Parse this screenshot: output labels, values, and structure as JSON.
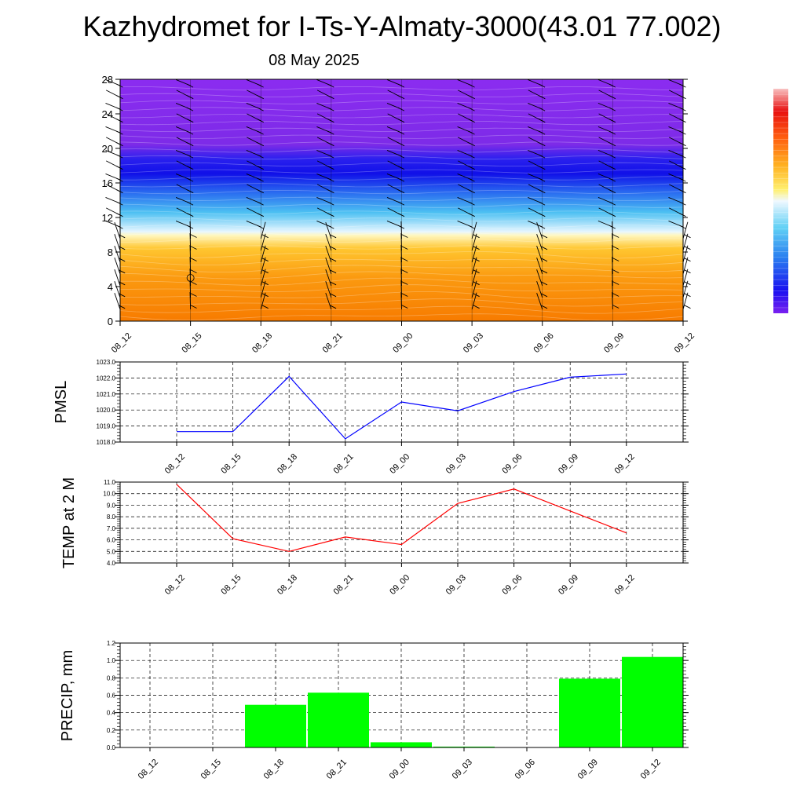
{
  "header": {
    "title": "Kazhydromet for I-Ts-Y-Almaty-3000(43.01 77.002)",
    "date": "08 May 2025"
  },
  "colors": {
    "pmsl_line": "#0000ff",
    "temp_line": "#ff0000",
    "precip_bar": "#00ff00",
    "cross_section_low": "#ff8c00",
    "cross_section_mid": "#ffd24d",
    "cross_section_cool": "#40c0f0",
    "cross_section_cold": "#1010f0",
    "cross_section_top": "#8a2be2"
  },
  "chart_data": [
    {
      "type": "heatmap",
      "name": "cross-section",
      "title": "",
      "x": [
        "08_12",
        "08_15",
        "08_18",
        "08_21",
        "09_00",
        "09_03",
        "09_06",
        "09_09",
        "09_12"
      ],
      "y_ticks": [
        0,
        4,
        8,
        12,
        16,
        20,
        24,
        28
      ],
      "ylim": [
        0,
        28
      ],
      "wind_barbs": true,
      "colorbar": true,
      "legend": "right"
    },
    {
      "type": "line",
      "name": "pmsl",
      "ylabel": "PMSL",
      "categories": [
        "08_12",
        "08_15",
        "08_18",
        "08_21",
        "09_00",
        "09_03",
        "09_06",
        "09_09",
        "09_12"
      ],
      "values": [
        1018.65,
        1018.65,
        1022.1,
        1018.2,
        1020.5,
        1019.95,
        1021.15,
        1022.05,
        1022.25
      ],
      "y_ticks": [
        "1018.0",
        "1019.0",
        "1020.0",
        "1021.0",
        "1022.0",
        "1023.0"
      ],
      "ylim": [
        1018,
        1023
      ],
      "grid": true
    },
    {
      "type": "line",
      "name": "temp",
      "ylabel": "TEMP at 2 M",
      "categories": [
        "08_12",
        "08_15",
        "08_18",
        "08_21",
        "09_00",
        "09_03",
        "09_06",
        "09_09",
        "09_12"
      ],
      "values": [
        10.8,
        6.1,
        5.0,
        6.25,
        5.6,
        9.15,
        10.4,
        8.5,
        6.6
      ],
      "y_ticks": [
        "4.0",
        "5.0",
        "6.0",
        "7.0",
        "8.0",
        "9.0",
        "10.0",
        "11.0"
      ],
      "ylim": [
        4,
        11
      ],
      "grid": true
    },
    {
      "type": "bar",
      "name": "precip",
      "ylabel": "PRECIP, mm",
      "categories": [
        "08_12",
        "08_15",
        "08_18",
        "08_21",
        "09_00",
        "09_03",
        "09_06",
        "09_09",
        "09_12"
      ],
      "values": [
        0.0,
        0.0,
        0.49,
        0.63,
        0.06,
        0.01,
        0.0,
        0.79,
        1.04
      ],
      "y_ticks": [
        "0.0",
        "0.2",
        "0.4",
        "0.6",
        "0.8",
        "1.0",
        "1.2"
      ],
      "ylim": [
        0,
        1.2
      ],
      "grid": true
    }
  ]
}
